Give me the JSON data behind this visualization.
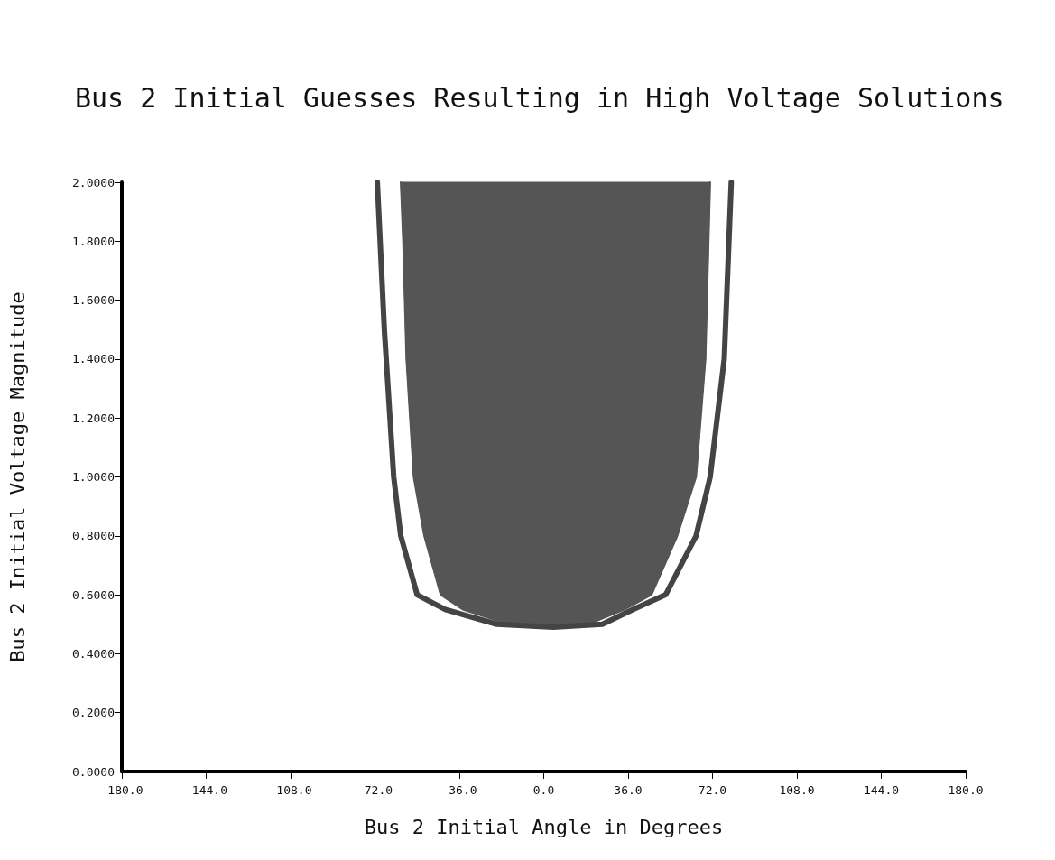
{
  "chart_data": {
    "type": "area",
    "title": "Bus 2 Initial Guesses Resulting in High Voltage Solutions",
    "xlabel": "Bus 2 Initial Angle in Degrees",
    "ylabel": "Bus 2 Initial Voltage Magnitude",
    "xlim": [
      -180,
      180
    ],
    "xticks": [
      {
        "value": -180,
        "label": "-180.0"
      },
      {
        "value": -144,
        "label": "-144.0"
      },
      {
        "value": -108,
        "label": "-108.0"
      },
      {
        "value": -72,
        "label": "-72.0"
      },
      {
        "value": -36,
        "label": "-36.0"
      },
      {
        "value": 0,
        "label": "0.0"
      },
      {
        "value": 36,
        "label": "36.0"
      },
      {
        "value": 72,
        "label": "72.0"
      },
      {
        "value": 108,
        "label": "108.0"
      },
      {
        "value": 144,
        "label": "144.0"
      },
      {
        "value": 180,
        "label": "180.0"
      }
    ],
    "ylim": [
      0,
      2
    ],
    "yticks": [
      {
        "value": 0,
        "label": "0.0000"
      },
      {
        "value": 0.2,
        "label": "0.2000"
      },
      {
        "value": 0.4,
        "label": "0.4000"
      },
      {
        "value": 0.6,
        "label": "0.6000"
      },
      {
        "value": 0.8,
        "label": "0.8000"
      },
      {
        "value": 1,
        "label": "1.0000"
      },
      {
        "value": 1.2,
        "label": "1.2000"
      },
      {
        "value": 1.4,
        "label": "1.4000"
      },
      {
        "value": 1.6,
        "label": "1.6000"
      },
      {
        "value": 1.8,
        "label": "1.8000"
      },
      {
        "value": 2,
        "label": "2.0000"
      }
    ],
    "grid": false,
    "series": [
      {
        "color": "#555555",
        "x": [
          -61,
          -60,
          -58.6,
          -55.5,
          -51,
          -44,
          -34.5,
          -15,
          4,
          19,
          34.5,
          46,
          57,
          65,
          69,
          71
        ],
        "values": [
          2.0,
          1.8,
          1.4,
          1.0,
          0.8,
          0.6,
          0.55,
          0.5,
          0.49,
          0.5,
          0.55,
          0.6,
          0.8,
          1.0,
          1.4,
          2.0
        ]
      },
      {
        "type": "line",
        "color": "#444444",
        "x": [
          -71,
          -68,
          -64,
          -61,
          -54,
          -42,
          -20,
          4,
          25,
          38,
          52,
          65,
          71,
          77,
          80
        ],
        "values": [
          2.0,
          1.5,
          1.0,
          0.8,
          0.6,
          0.55,
          0.5,
          0.49,
          0.5,
          0.55,
          0.6,
          0.8,
          1.0,
          1.4,
          2.0
        ]
      }
    ]
  }
}
